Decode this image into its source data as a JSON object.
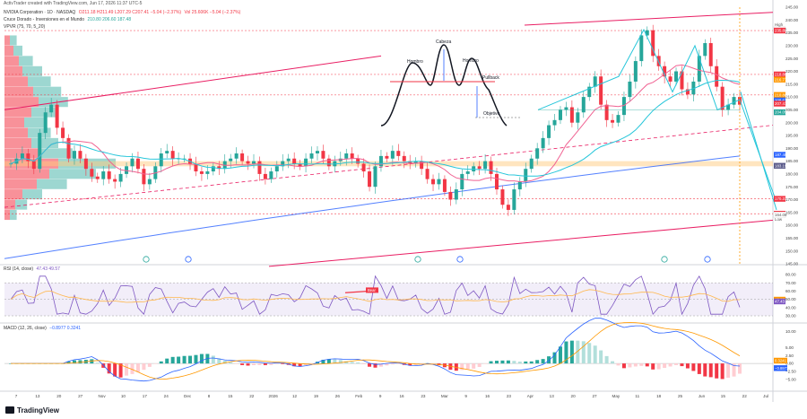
{
  "header": {
    "watermark": "ActivTrader created with TradingView.com, Jun 17, 2026 11:37 UTC-5",
    "symbol": "NVIDIA Corporation · 1D · NASDAQ",
    "ohlc": "O211.18 H211.49 L207.29 C207.41 −5.04 (−2.37%)",
    "volume": "Vol 25.606K −5.04 (−2.37%)",
    "ma_label": "Cruce Dorado - Inversiones en el Mundo",
    "ma_values": "210.80 206.60 187.48",
    "vpvr_label": "VPVR (75, 70, 5_20)"
  },
  "price_axis": {
    "ticks": [
      "245.00",
      "240.00",
      "235.00",
      "230.00",
      "225.00",
      "220.00",
      "215.00",
      "210.00",
      "205.00",
      "200.00",
      "195.00",
      "190.00",
      "185.00",
      "180.00",
      "175.00",
      "170.00",
      "165.00",
      "160.00",
      "155.00",
      "150.00",
      "145.00"
    ],
    "labels": [
      {
        "text": "236.24",
        "value": 236.24,
        "color": "#ffffff",
        "bg": "#ffffff",
        "fg": "#555"
      },
      {
        "text": "235.89",
        "value": 235.89,
        "color": "#f23645",
        "bg": "#f23645",
        "fg": "#fff"
      },
      {
        "text": "218.80",
        "value": 218.8,
        "bg": "#f23645",
        "fg": "#fff"
      },
      {
        "text": "216.77",
        "value": 216.77,
        "bg": "#ff9800",
        "fg": "#fff"
      },
      {
        "text": "210.80",
        "value": 210.8,
        "bg": "#ff9800",
        "fg": "#fff"
      },
      {
        "text": "208.67",
        "value": 208.67,
        "bg": "#2962ff",
        "fg": "#fff"
      },
      {
        "text": "207.41",
        "value": 207.41,
        "bg": "#f23645",
        "fg": "#fff"
      },
      {
        "text": "204.05",
        "value": 204.05,
        "bg": "#26a69a",
        "fg": "#fff"
      },
      {
        "text": "187.48",
        "value": 187.48,
        "bg": "#2962ff",
        "fg": "#fff"
      },
      {
        "text": "183.19",
        "value": 183.19,
        "bg": "#5a5a8a",
        "fg": "#fff"
      },
      {
        "text": "170.31",
        "value": 170.31,
        "bg": "#f23645",
        "fg": "#fff"
      },
      {
        "text": "164.50",
        "value": 164.5,
        "bg": "#f23645",
        "fg": "#fff"
      },
      {
        "text": "164.08",
        "value": 164.08,
        "bg": "#ffffff",
        "fg": "#555"
      }
    ],
    "high_label": "High",
    "low_label": "Low"
  },
  "annotations": {
    "cabeza": "Cabeza",
    "hombro_left": "Hombro",
    "hombro_right": "Hombro",
    "pullback": "Pullback",
    "objetivo": "Objetivo"
  },
  "rsi": {
    "label": "RSI (14, close)",
    "values_text": "47.43 49.57",
    "ticks": [
      "80.00",
      "70.00",
      "60.00",
      "50.00",
      "40.00",
      "30.00"
    ],
    "last": [
      {
        "text": "49.57",
        "bg": "#ff9800"
      },
      {
        "text": "47.43",
        "bg": "#7e57c2"
      }
    ],
    "bear_label": "Bear"
  },
  "macd": {
    "label": "MACD (12, 26, close)",
    "values_text": "−0.8977 0.3241",
    "ticks": [
      "10.00",
      "5.00",
      "2.50",
      "0.00",
      "−2.50",
      "−5.00"
    ],
    "last": [
      {
        "text": "0.3241",
        "bg": "#ff9800"
      },
      {
        "text": "−0.8977",
        "bg": "#2962ff"
      }
    ]
  },
  "time_axis": [
    "7",
    "13",
    "20",
    "27",
    "Nov",
    "10",
    "17",
    "24",
    "Dec",
    "8",
    "15",
    "22",
    "2026",
    "12",
    "19",
    "26",
    "Feb",
    "9",
    "16",
    "23",
    "Mar",
    "9",
    "16",
    "23",
    "Apr",
    "13",
    "20",
    "27",
    "May",
    "11",
    "18",
    "25",
    "Jun",
    "15",
    "22",
    "Jul"
  ],
  "branding": "TradingView",
  "chart_data": {
    "type": "candlestick",
    "symbol": "NVDA",
    "timeframe": "1D",
    "ylim": [
      145,
      245
    ],
    "candles_close": [
      184,
      186,
      188,
      185,
      182,
      196,
      204,
      207,
      198,
      194,
      186,
      189,
      186,
      182,
      179,
      178,
      181,
      178,
      177,
      180,
      183,
      186,
      182,
      176,
      178,
      183,
      188,
      189,
      186,
      186,
      186,
      184,
      181,
      180,
      181,
      183,
      182,
      185,
      186,
      188,
      185,
      184,
      185,
      180,
      178,
      181,
      183,
      185,
      186,
      184,
      183,
      186,
      188,
      189,
      186,
      183,
      185,
      186,
      188,
      186,
      184,
      181,
      175,
      183,
      187,
      186,
      189,
      187,
      185,
      184,
      185,
      182,
      178,
      176,
      178,
      173,
      170,
      174,
      180,
      181,
      183,
      182,
      185,
      180,
      174,
      168,
      166,
      174,
      177,
      182,
      186,
      190,
      194,
      199,
      201,
      205,
      206,
      200,
      204,
      210,
      214,
      218,
      207,
      201,
      200,
      203,
      210,
      216,
      224,
      234,
      236,
      226,
      222,
      218,
      216,
      220,
      213,
      211,
      216,
      226,
      231,
      222,
      214,
      205,
      207,
      210,
      207
    ],
    "sma_50_end": 210.8,
    "sma_20_end": 206.6,
    "sma_200_end": 187.48,
    "head_and_shoulders": {
      "left_shoulder": 230,
      "head": 236.24,
      "right_shoulder": 232,
      "neckline": 205,
      "target": 164.5
    },
    "rsi_last": [
      47.43,
      49.57
    ],
    "macd_last": [
      -0.8977,
      0.3241
    ]
  }
}
